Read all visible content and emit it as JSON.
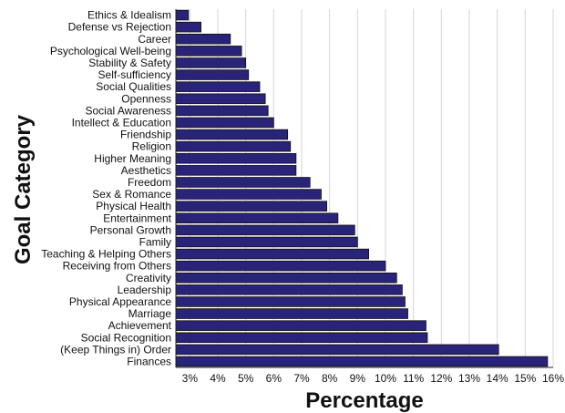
{
  "chart_data": {
    "type": "bar",
    "orientation": "horizontal",
    "xlabel": "Percentage",
    "ylabel": "Goal Category",
    "xlim": [
      2.5,
      16
    ],
    "xticks": [
      3,
      4,
      5,
      6,
      7,
      8,
      9,
      10,
      11,
      12,
      13,
      14,
      15,
      16
    ],
    "tick_suffix": "%",
    "grid": "vertical",
    "bar_color": "#2a237a",
    "categories": [
      "Ethics & Idealism",
      "Defense vs Rejection",
      "Career",
      "Psychological Well-being",
      "Stability & Safety",
      "Self-sufficiency",
      "Social Qualities",
      "Openness",
      "Social Awareness",
      "Intellect & Education",
      "Friendship",
      "Religion",
      "Higher Meaning",
      "Aesthetics",
      "Freedom",
      "Sex & Romance",
      "Physical Health",
      "Entertainment",
      "Personal Growth",
      "Family",
      "Teaching & Helping Others",
      "Receiving from Others",
      "Creativity",
      "Leadership",
      "Physical Appearance",
      "Marriage",
      "Achievement",
      "Social Recognition",
      "(Keep Things in) Order",
      "Finances"
    ],
    "values": [
      2.95,
      3.4,
      4.45,
      4.85,
      5.0,
      5.1,
      5.5,
      5.7,
      5.8,
      6.0,
      6.5,
      6.6,
      6.8,
      6.8,
      7.3,
      7.7,
      7.9,
      8.3,
      8.9,
      9.0,
      9.4,
      10.0,
      10.4,
      10.6,
      10.7,
      10.8,
      11.45,
      11.5,
      14.05,
      15.8
    ]
  }
}
